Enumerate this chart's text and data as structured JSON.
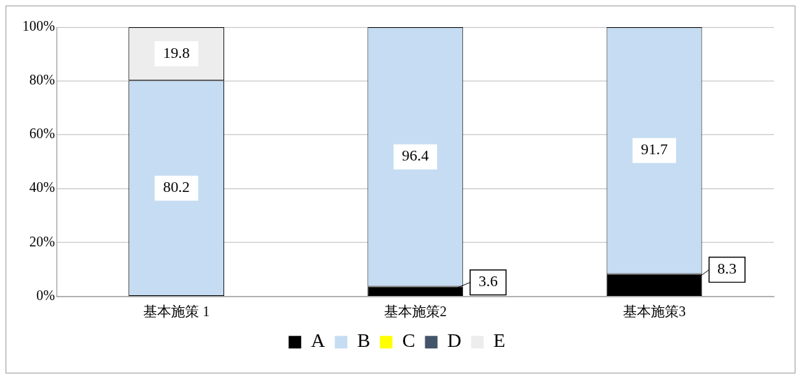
{
  "chart_data": {
    "type": "bar",
    "stacked": true,
    "categories": [
      "基本施策 1",
      "基本施策2",
      "基本施策3"
    ],
    "series": [
      {
        "name": "A",
        "color": "#000000",
        "values": [
          0,
          3.6,
          8.3
        ],
        "value_labels": [
          null,
          "3.6",
          "8.3"
        ]
      },
      {
        "name": "B",
        "color": "#c5dcf2",
        "values": [
          80.2,
          96.4,
          91.7
        ],
        "value_labels": [
          "80.2",
          "96.4",
          "91.7"
        ]
      },
      {
        "name": "C",
        "color": "#ffff00",
        "values": [
          0,
          0,
          0
        ],
        "value_labels": [
          null,
          null,
          null
        ]
      },
      {
        "name": "D",
        "color": "#44546a",
        "values": [
          0,
          0,
          0
        ],
        "value_labels": [
          null,
          null,
          null
        ]
      },
      {
        "name": "E",
        "color": "#ededed",
        "values": [
          19.8,
          0,
          0
        ],
        "value_labels": [
          "19.8",
          null,
          null
        ]
      }
    ],
    "ylim": [
      0,
      100
    ],
    "yticks": [
      {
        "value": 0,
        "label": "0%"
      },
      {
        "value": 20,
        "label": "20%"
      },
      {
        "value": 40,
        "label": "40%"
      },
      {
        "value": 60,
        "label": "60%"
      },
      {
        "value": 80,
        "label": "80%"
      },
      {
        "value": 100,
        "label": "100%"
      }
    ],
    "grid": "y",
    "legend": "bottom"
  }
}
